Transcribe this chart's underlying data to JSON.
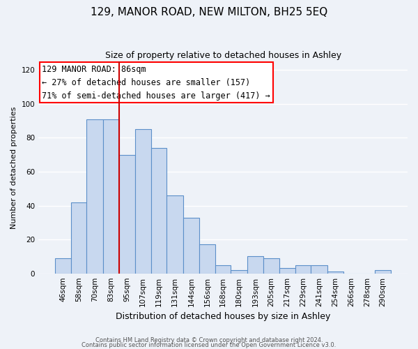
{
  "title": "129, MANOR ROAD, NEW MILTON, BH25 5EQ",
  "subtitle": "Size of property relative to detached houses in Ashley",
  "xlabel": "Distribution of detached houses by size in Ashley",
  "ylabel": "Number of detached properties",
  "bar_labels": [
    "46sqm",
    "58sqm",
    "70sqm",
    "83sqm",
    "95sqm",
    "107sqm",
    "119sqm",
    "131sqm",
    "144sqm",
    "156sqm",
    "168sqm",
    "180sqm",
    "193sqm",
    "205sqm",
    "217sqm",
    "229sqm",
    "241sqm",
    "254sqm",
    "266sqm",
    "278sqm",
    "290sqm"
  ],
  "bar_values": [
    9,
    42,
    91,
    91,
    70,
    85,
    74,
    46,
    33,
    17,
    5,
    2,
    10,
    9,
    3,
    5,
    5,
    1,
    0,
    0,
    2
  ],
  "bar_color": "#c8d8ef",
  "bar_edge_color": "#5b8fc9",
  "ylim": [
    0,
    125
  ],
  "yticks": [
    0,
    20,
    40,
    60,
    80,
    100,
    120
  ],
  "annotation_line1": "129 MANOR ROAD: 86sqm",
  "annotation_line2": "← 27% of detached houses are smaller (157)",
  "annotation_line3": "71% of semi-detached houses are larger (417) →",
  "footer_line1": "Contains HM Land Registry data © Crown copyright and database right 2024.",
  "footer_line2": "Contains public sector information licensed under the Open Government Licence v3.0.",
  "bg_color": "#eef2f8",
  "plot_bg_color": "#eef2f8",
  "grid_color": "#ffffff",
  "red_line_color": "#cc0000",
  "title_fontsize": 11,
  "subtitle_fontsize": 9,
  "ylabel_fontsize": 8,
  "xlabel_fontsize": 9,
  "tick_fontsize": 7.5,
  "annotation_fontsize": 8.5,
  "footer_fontsize": 6
}
